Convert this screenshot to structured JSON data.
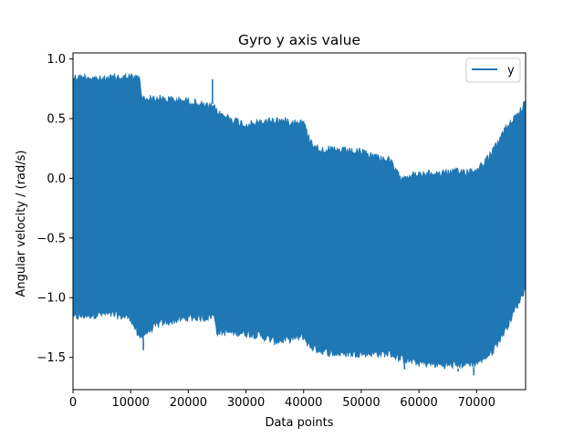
{
  "chart_data": {
    "type": "area",
    "title": "Gyro y axis value",
    "xlabel": "Data points",
    "ylabel": "Angular velocity / (rad/s)",
    "xlim": [
      0,
      78500
    ],
    "ylim": [
      -1.77,
      1.05
    ],
    "xticks": [
      0,
      10000,
      20000,
      30000,
      40000,
      50000,
      60000,
      70000
    ],
    "xtick_labels": [
      "0",
      "10000",
      "20000",
      "30000",
      "40000",
      "50000",
      "60000",
      "70000"
    ],
    "yticks": [
      -1.5,
      -1.0,
      -0.5,
      0.0,
      0.5,
      1.0
    ],
    "ytick_labels": [
      "−1.5",
      "−1.0",
      "−0.5",
      "0.0",
      "0.5",
      "1.0"
    ],
    "grid": false,
    "legend_position": "top-right",
    "series": [
      {
        "name": "y",
        "color": "#1f77b4",
        "description_points": "upper and lower envelope of the dense oscillating signal, in data units",
        "x": [
          0,
          2500,
          5000,
          7500,
          10000,
          11500,
          12000,
          15000,
          20000,
          23000,
          24500,
          25000,
          30000,
          32500,
          35000,
          40000,
          41000,
          42500,
          45000,
          50000,
          55000,
          56500,
          60000,
          65000,
          70000,
          72500,
          75000,
          78500
        ],
        "upper": [
          0.88,
          0.88,
          0.86,
          0.88,
          0.88,
          0.87,
          0.7,
          0.7,
          0.68,
          0.64,
          0.62,
          0.58,
          0.48,
          0.5,
          0.52,
          0.5,
          0.36,
          0.28,
          0.27,
          0.25,
          0.18,
          0.05,
          0.06,
          0.08,
          0.1,
          0.23,
          0.45,
          0.66
        ],
        "lower": [
          -1.2,
          -1.18,
          -1.17,
          -1.18,
          -1.2,
          -1.38,
          -1.35,
          -1.25,
          -1.2,
          -1.2,
          -1.18,
          -1.32,
          -1.33,
          -1.35,
          -1.4,
          -1.36,
          -1.44,
          -1.47,
          -1.5,
          -1.5,
          -1.5,
          -1.54,
          -1.58,
          -1.6,
          -1.58,
          -1.5,
          -1.3,
          -0.95
        ],
        "spikes": [
          {
            "x": 24200,
            "y": 0.83
          },
          {
            "x": 12200,
            "y": -1.44
          },
          {
            "x": 57500,
            "y": -1.6
          },
          {
            "x": 66800,
            "y": -1.62
          },
          {
            "x": 69500,
            "y": -1.65
          }
        ]
      }
    ]
  }
}
